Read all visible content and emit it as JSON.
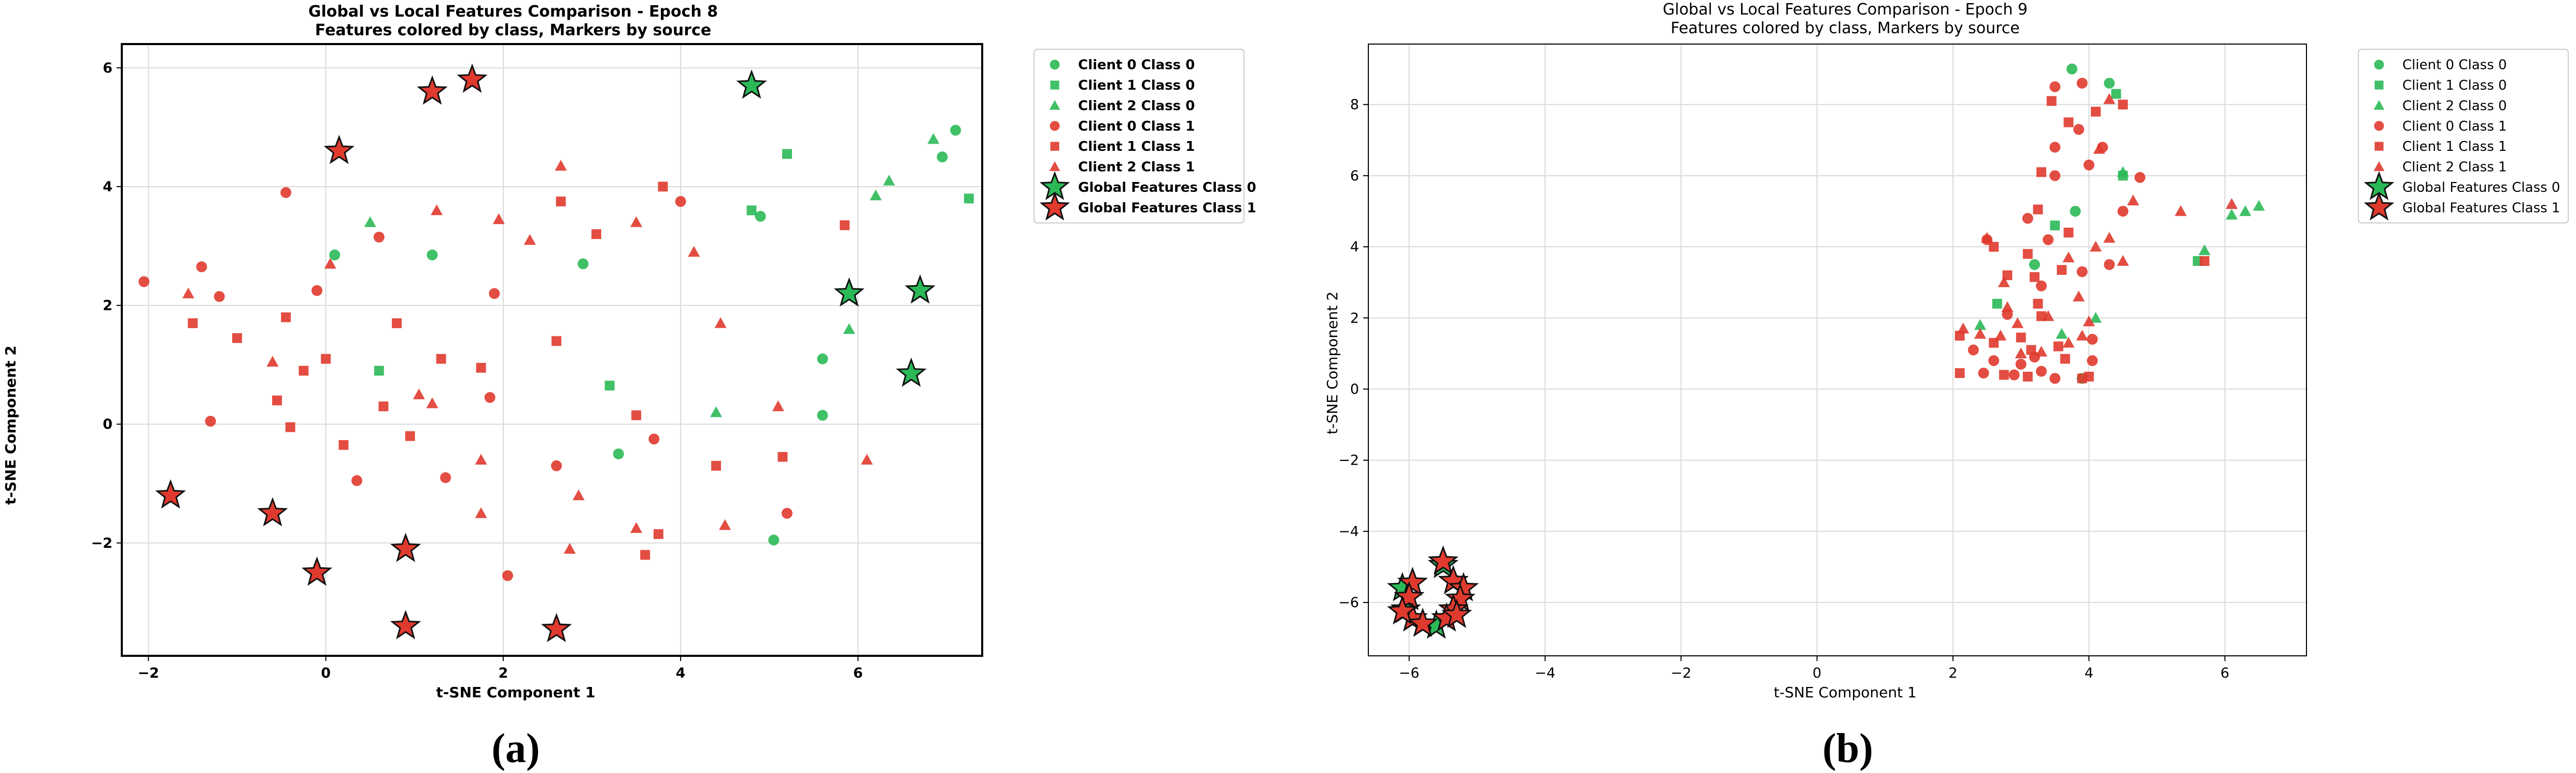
{
  "colors": {
    "class0": "#2bb957",
    "class1": "#e03a2e",
    "global_edge": "#111111",
    "grid": "#d9d9d9",
    "axis": "#000000"
  },
  "chart_data": [
    {
      "type": "scatter",
      "panel_label": "(a)",
      "title_line1": "Global vs Local Features Comparison - Epoch 8",
      "title_line2": "Features colored by class, Markers by source",
      "title_bold": true,
      "xlabel": "t-SNE Component 1",
      "ylabel": "t-SNE Component 2",
      "xlim": [
        -2.3,
        7.4
      ],
      "ylim": [
        -3.9,
        6.4
      ],
      "xticks": [
        -2,
        0,
        2,
        4,
        6
      ],
      "yticks": [
        -2,
        0,
        2,
        4,
        6
      ],
      "xtick_labels": [
        "−2",
        "0",
        "2",
        "4",
        "6"
      ],
      "ytick_labels": [
        "−2",
        "0",
        "2",
        "4",
        "6"
      ],
      "grid": true,
      "legend_position": "outside-right",
      "legend": [
        {
          "label": "Client 0 Class 0",
          "marker": "circle",
          "color": "class0"
        },
        {
          "label": "Client 1 Class 0",
          "marker": "square",
          "color": "class0"
        },
        {
          "label": "Client 2 Class 0",
          "marker": "triangle",
          "color": "class0"
        },
        {
          "label": "Client 0 Class 1",
          "marker": "circle",
          "color": "class1"
        },
        {
          "label": "Client 1 Class 1",
          "marker": "square",
          "color": "class1"
        },
        {
          "label": "Client 2 Class 1",
          "marker": "triangle",
          "color": "class1"
        },
        {
          "label": "Global Features Class 0",
          "marker": "star",
          "color": "class0"
        },
        {
          "label": "Global Features Class 1",
          "marker": "star",
          "color": "class1"
        }
      ],
      "series": [
        {
          "name": "Client 0 Class 0",
          "marker": "circle",
          "color": "class0",
          "points": [
            [
              0.1,
              2.85
            ],
            [
              1.2,
              2.85
            ],
            [
              2.9,
              2.7
            ],
            [
              3.3,
              -0.5
            ],
            [
              4.9,
              3.5
            ],
            [
              5.6,
              1.1
            ],
            [
              5.6,
              0.15
            ],
            [
              5.05,
              -1.95
            ],
            [
              6.95,
              4.5
            ],
            [
              7.1,
              4.95
            ]
          ]
        },
        {
          "name": "Client 1 Class 0",
          "marker": "square",
          "color": "class0",
          "points": [
            [
              0.6,
              0.9
            ],
            [
              3.2,
              0.65
            ],
            [
              4.8,
              3.6
            ],
            [
              5.2,
              4.55
            ],
            [
              7.25,
              3.8
            ]
          ]
        },
        {
          "name": "Client 2 Class 0",
          "marker": "triangle",
          "color": "class0",
          "points": [
            [
              0.5,
              3.4
            ],
            [
              4.4,
              0.2
            ],
            [
              5.9,
              1.6
            ],
            [
              6.2,
              3.85
            ],
            [
              6.35,
              4.1
            ],
            [
              6.85,
              4.8
            ]
          ]
        },
        {
          "name": "Client 0 Class 1",
          "marker": "circle",
          "color": "class1",
          "points": [
            [
              -2.05,
              2.4
            ],
            [
              -1.4,
              2.65
            ],
            [
              -1.2,
              2.15
            ],
            [
              -1.3,
              0.05
            ],
            [
              -0.45,
              3.9
            ],
            [
              0.6,
              3.15
            ],
            [
              -0.1,
              2.25
            ],
            [
              1.85,
              0.45
            ],
            [
              1.9,
              2.2
            ],
            [
              1.35,
              -0.9
            ],
            [
              0.35,
              -0.95
            ],
            [
              2.05,
              -2.55
            ],
            [
              2.6,
              -0.7
            ],
            [
              3.7,
              -0.25
            ],
            [
              4.0,
              3.75
            ],
            [
              5.2,
              -1.5
            ]
          ]
        },
        {
          "name": "Client 1 Class 1",
          "marker": "square",
          "color": "class1",
          "points": [
            [
              -1.5,
              1.7
            ],
            [
              -1.0,
              1.45
            ],
            [
              -0.45,
              1.8
            ],
            [
              -0.55,
              0.4
            ],
            [
              -0.4,
              -0.05
            ],
            [
              -0.25,
              0.9
            ],
            [
              0.0,
              1.1
            ],
            [
              0.2,
              -0.35
            ],
            [
              0.65,
              0.3
            ],
            [
              0.8,
              1.7
            ],
            [
              0.95,
              -0.2
            ],
            [
              1.3,
              1.1
            ],
            [
              1.75,
              0.95
            ],
            [
              2.6,
              1.4
            ],
            [
              2.65,
              3.75
            ],
            [
              3.05,
              3.2
            ],
            [
              3.8,
              4.0
            ],
            [
              3.5,
              0.15
            ],
            [
              3.75,
              -1.85
            ],
            [
              3.6,
              -2.2
            ],
            [
              4.4,
              -0.7
            ],
            [
              5.15,
              -0.55
            ],
            [
              5.85,
              3.35
            ]
          ]
        },
        {
          "name": "Client 2 Class 1",
          "marker": "triangle",
          "color": "class1",
          "points": [
            [
              -1.55,
              2.2
            ],
            [
              -0.6,
              1.05
            ],
            [
              0.05,
              2.7
            ],
            [
              1.05,
              0.5
            ],
            [
              1.2,
              0.35
            ],
            [
              1.25,
              3.6
            ],
            [
              1.95,
              3.45
            ],
            [
              1.75,
              -0.6
            ],
            [
              1.75,
              -1.5
            ],
            [
              2.3,
              3.1
            ],
            [
              2.65,
              4.35
            ],
            [
              2.85,
              -1.2
            ],
            [
              2.75,
              -2.1
            ],
            [
              3.5,
              3.4
            ],
            [
              3.5,
              -1.75
            ],
            [
              4.15,
              2.9
            ],
            [
              4.45,
              1.7
            ],
            [
              4.5,
              -1.7
            ],
            [
              5.1,
              0.3
            ],
            [
              6.1,
              -0.6
            ]
          ]
        },
        {
          "name": "Global Features Class 0",
          "marker": "star",
          "color": "class0",
          "points": [
            [
              4.8,
              5.7
            ],
            [
              5.9,
              2.2
            ],
            [
              6.7,
              2.25
            ],
            [
              6.6,
              0.85
            ]
          ]
        },
        {
          "name": "Global Features Class 1",
          "marker": "star",
          "color": "class1",
          "points": [
            [
              0.15,
              4.6
            ],
            [
              1.2,
              5.6
            ],
            [
              1.65,
              5.8
            ],
            [
              -1.75,
              -1.2
            ],
            [
              -0.6,
              -1.5
            ],
            [
              -0.1,
              -2.5
            ],
            [
              0.9,
              -2.1
            ],
            [
              0.9,
              -3.4
            ],
            [
              2.6,
              -3.45
            ]
          ]
        }
      ]
    },
    {
      "type": "scatter",
      "panel_label": "(b)",
      "title_line1": "Global vs Local Features Comparison - Epoch 9",
      "title_line2": "Features colored by class, Markers by source",
      "title_bold": false,
      "xlabel": "t-SNE Component 1",
      "ylabel": "t-SNE Component 2",
      "xlim": [
        -6.6,
        7.2
      ],
      "ylim": [
        -7.5,
        9.7
      ],
      "xticks": [
        -6,
        -4,
        -2,
        0,
        2,
        4,
        6
      ],
      "yticks": [
        -6,
        -4,
        -2,
        0,
        2,
        4,
        6,
        8
      ],
      "xtick_labels": [
        "−6",
        "−4",
        "−2",
        "0",
        "2",
        "4",
        "6"
      ],
      "ytick_labels": [
        "−6",
        "−4",
        "−2",
        "0",
        "2",
        "4",
        "6",
        "8"
      ],
      "grid": true,
      "legend_position": "outside-right",
      "legend": [
        {
          "label": "Client 0 Class 0",
          "marker": "circle",
          "color": "class0"
        },
        {
          "label": "Client 1 Class 0",
          "marker": "square",
          "color": "class0"
        },
        {
          "label": "Client 2 Class 0",
          "marker": "triangle",
          "color": "class0"
        },
        {
          "label": "Client 0 Class 1",
          "marker": "circle",
          "color": "class1"
        },
        {
          "label": "Client 1 Class 1",
          "marker": "square",
          "color": "class1"
        },
        {
          "label": "Client 2 Class 1",
          "marker": "triangle",
          "color": "class1"
        },
        {
          "label": "Global Features Class 0",
          "marker": "star",
          "color": "class0"
        },
        {
          "label": "Global Features Class 1",
          "marker": "star",
          "color": "class1"
        }
      ],
      "series": [
        {
          "name": "Client 0 Class 0",
          "marker": "circle",
          "color": "class0",
          "points": [
            [
              3.75,
              9.0
            ],
            [
              4.3,
              8.6
            ],
            [
              3.2,
              3.5
            ],
            [
              3.8,
              5.0
            ],
            [
              3.9,
              0.3
            ]
          ]
        },
        {
          "name": "Client 1 Class 0",
          "marker": "square",
          "color": "class0",
          "points": [
            [
              2.65,
              2.4
            ],
            [
              4.5,
              6.0
            ],
            [
              5.6,
              3.6
            ],
            [
              4.4,
              8.3
            ],
            [
              3.5,
              4.6
            ]
          ]
        },
        {
          "name": "Client 2 Class 0",
          "marker": "triangle",
          "color": "class0",
          "points": [
            [
              4.5,
              6.1
            ],
            [
              2.4,
              1.8
            ],
            [
              3.6,
              1.55
            ],
            [
              4.1,
              2.0
            ],
            [
              5.7,
              3.9
            ],
            [
              6.1,
              4.9
            ],
            [
              6.3,
              5.0
            ],
            [
              6.5,
              5.15
            ]
          ]
        },
        {
          "name": "Client 0 Class 1",
          "marker": "circle",
          "color": "class1",
          "points": [
            [
              3.5,
              8.5
            ],
            [
              3.9,
              8.6
            ],
            [
              3.5,
              6.8
            ],
            [
              3.5,
              6.0
            ],
            [
              4.0,
              6.3
            ],
            [
              3.85,
              7.3
            ],
            [
              4.2,
              6.8
            ],
            [
              3.1,
              4.8
            ],
            [
              3.4,
              4.2
            ],
            [
              2.5,
              4.2
            ],
            [
              3.3,
              2.9
            ],
            [
              2.8,
              2.1
            ],
            [
              2.3,
              1.1
            ],
            [
              2.6,
              0.8
            ],
            [
              3.0,
              0.7
            ],
            [
              3.3,
              0.5
            ],
            [
              2.9,
              0.4
            ],
            [
              3.5,
              0.3
            ],
            [
              4.05,
              1.4
            ],
            [
              4.05,
              0.8
            ],
            [
              4.3,
              3.5
            ],
            [
              4.5,
              5.0
            ],
            [
              4.75,
              5.95
            ],
            [
              3.2,
              0.9
            ],
            [
              2.45,
              0.45
            ],
            [
              3.9,
              3.3
            ]
          ]
        },
        {
          "name": "Client 1 Class 1",
          "marker": "square",
          "color": "class1",
          "points": [
            [
              3.45,
              8.1
            ],
            [
              4.5,
              8.0
            ],
            [
              4.1,
              7.8
            ],
            [
              3.7,
              7.5
            ],
            [
              3.3,
              6.1
            ],
            [
              3.25,
              5.05
            ],
            [
              3.7,
              4.4
            ],
            [
              3.1,
              3.8
            ],
            [
              2.6,
              4.0
            ],
            [
              3.6,
              3.35
            ],
            [
              2.8,
              3.2
            ],
            [
              3.2,
              3.15
            ],
            [
              3.25,
              2.4
            ],
            [
              3.3,
              2.05
            ],
            [
              2.1,
              1.5
            ],
            [
              2.6,
              1.3
            ],
            [
              3.0,
              1.45
            ],
            [
              3.15,
              1.1
            ],
            [
              3.65,
              0.85
            ],
            [
              4.0,
              0.35
            ],
            [
              3.9,
              0.3
            ],
            [
              2.1,
              0.45
            ],
            [
              2.75,
              0.4
            ],
            [
              3.1,
              0.35
            ],
            [
              3.55,
              1.2
            ],
            [
              5.7,
              3.6
            ]
          ]
        },
        {
          "name": "Client 2 Class 1",
          "marker": "triangle",
          "color": "class1",
          "points": [
            [
              4.3,
              8.15
            ],
            [
              4.15,
              6.75
            ],
            [
              4.65,
              5.3
            ],
            [
              4.3,
              4.25
            ],
            [
              4.1,
              4.0
            ],
            [
              3.7,
              3.7
            ],
            [
              4.5,
              3.6
            ],
            [
              2.5,
              4.25
            ],
            [
              2.75,
              3.0
            ],
            [
              2.8,
              2.3
            ],
            [
              3.4,
              2.05
            ],
            [
              2.7,
              1.5
            ],
            [
              2.15,
              1.7
            ],
            [
              3.0,
              1.0
            ],
            [
              3.3,
              1.05
            ],
            [
              3.7,
              1.3
            ],
            [
              3.9,
              1.5
            ],
            [
              4.0,
              1.9
            ],
            [
              3.85,
              2.6
            ],
            [
              5.35,
              5.0
            ],
            [
              6.1,
              5.2
            ],
            [
              2.4,
              1.55
            ],
            [
              2.95,
              1.85
            ]
          ]
        },
        {
          "name": "Global Features Class 0",
          "marker": "star",
          "color": "class0",
          "points": [
            [
              -6.1,
              -5.6
            ],
            [
              -5.5,
              -4.95
            ],
            [
              -5.6,
              -6.65
            ],
            [
              -6.05,
              -6.2
            ]
          ]
        },
        {
          "name": "Global Features Class 1",
          "marker": "star",
          "color": "class1",
          "points": [
            [
              -5.5,
              -4.85
            ],
            [
              -5.95,
              -5.45
            ],
            [
              -6.0,
              -5.85
            ],
            [
              -5.35,
              -5.4
            ],
            [
              -5.2,
              -5.6
            ],
            [
              -5.25,
              -5.9
            ],
            [
              -5.35,
              -6.2
            ],
            [
              -5.45,
              -6.45
            ],
            [
              -5.3,
              -6.35
            ],
            [
              -5.95,
              -6.45
            ],
            [
              -5.8,
              -6.6
            ],
            [
              -6.1,
              -6.25
            ]
          ]
        }
      ]
    }
  ]
}
